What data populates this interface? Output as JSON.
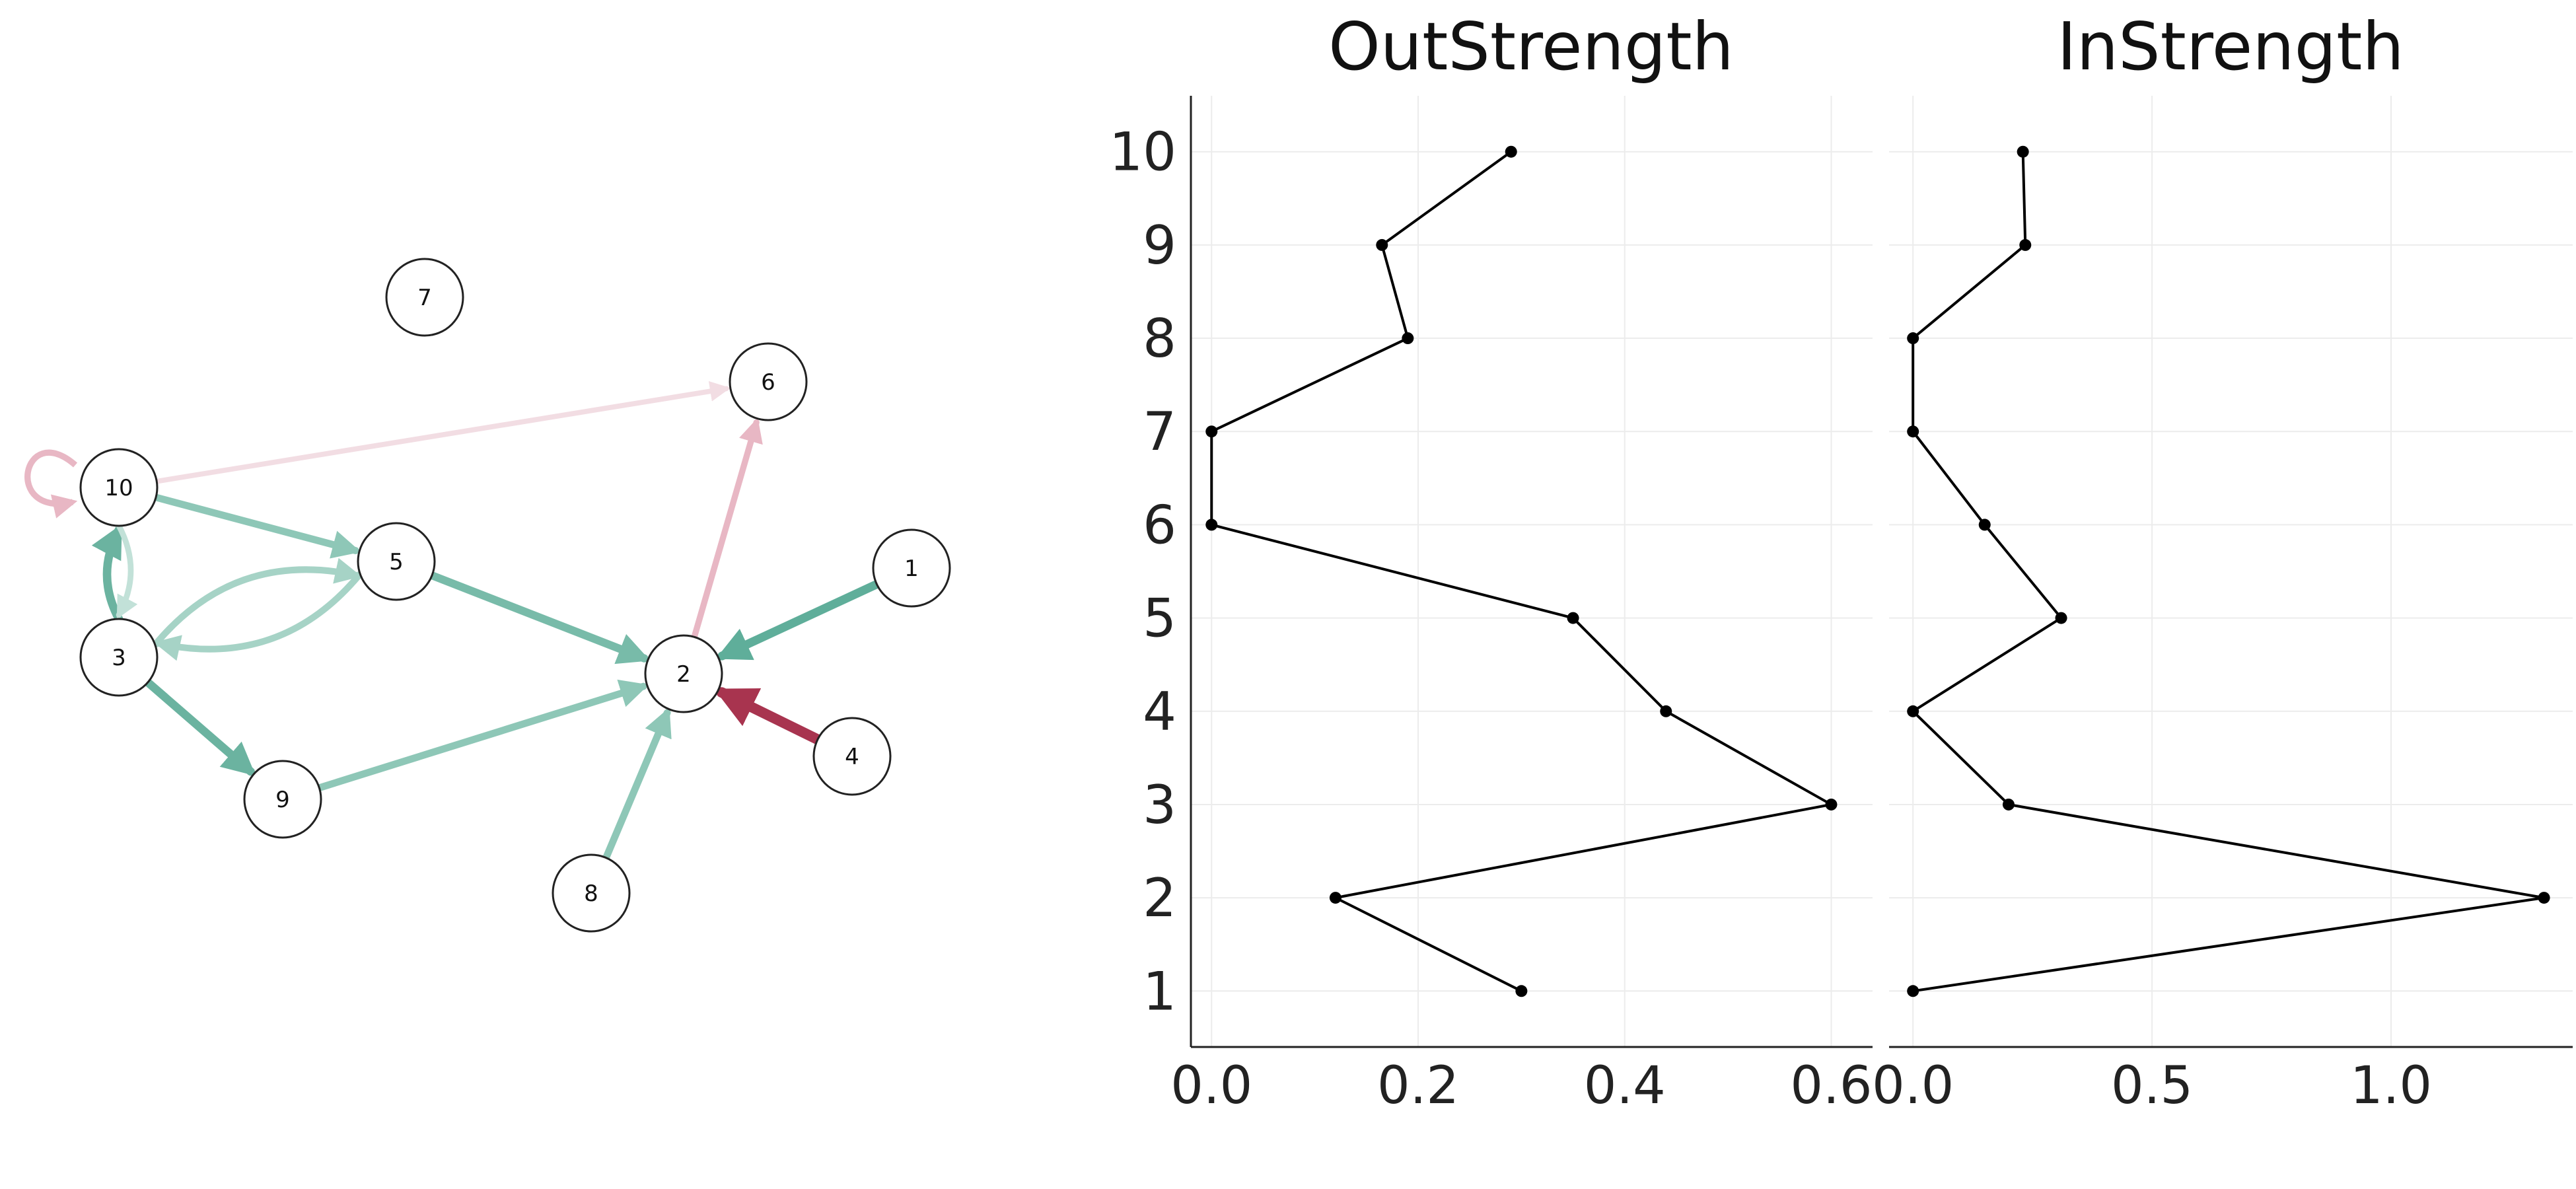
{
  "graph": {
    "node_labels": [
      "1",
      "2",
      "3",
      "4",
      "5",
      "6",
      "7",
      "8",
      "9",
      "10"
    ],
    "edges": [
      {
        "from": "1",
        "to": "2",
        "color": "#5fae9a",
        "weight": 0.32
      },
      {
        "from": "4",
        "to": "2",
        "color": "#a8344f",
        "weight": 0.45
      },
      {
        "from": "5",
        "to": "2",
        "color": "#78bba9",
        "weight": 0.28
      },
      {
        "from": "9",
        "to": "2",
        "color": "#8ec7b7",
        "weight": 0.22
      },
      {
        "from": "8",
        "to": "2",
        "color": "#8ec7b7",
        "weight": 0.22
      },
      {
        "from": "2",
        "to": "6",
        "color": "#e8b7c4",
        "weight": 0.15
      },
      {
        "from": "10",
        "to": "5",
        "color": "#8ec7b7",
        "weight": 0.22
      },
      {
        "from": "3",
        "to": "5",
        "color": "#a6d3c6",
        "weight": 0.18
      },
      {
        "from": "5",
        "to": "3",
        "color": "#a6d3c6",
        "weight": 0.18
      },
      {
        "from": "3",
        "to": "10",
        "color": "#6bb3a0",
        "weight": 0.3
      },
      {
        "from": "10",
        "to": "3",
        "color": "#c2e1d8",
        "weight": 0.12
      },
      {
        "from": "3",
        "to": "9",
        "color": "#6bb3a0",
        "weight": 0.3
      },
      {
        "from": "10",
        "to": "6",
        "color": "#f2dde3",
        "weight": 0.08
      },
      {
        "from": "10",
        "to": "10",
        "color": "#e8b7c4",
        "weight": 0.15
      }
    ]
  },
  "chart_data": [
    {
      "type": "line",
      "title": "OutStrength",
      "y": [
        1,
        2,
        3,
        4,
        5,
        6,
        7,
        8,
        9,
        10
      ],
      "x": [
        0.3,
        0.12,
        0.6,
        0.44,
        0.35,
        0.0,
        0.0,
        0.19,
        0.165,
        0.29
      ],
      "xlim": [
        -0.02,
        0.64
      ],
      "ylim": [
        0.4,
        10.6
      ],
      "xticks": [
        "0.0",
        "0.2",
        "0.4",
        "0.6"
      ],
      "yticks": [
        "1",
        "2",
        "3",
        "4",
        "5",
        "6",
        "7",
        "8",
        "9",
        "10"
      ],
      "grid": true
    },
    {
      "type": "line",
      "title": "InStrength",
      "y": [
        1,
        2,
        3,
        4,
        5,
        6,
        7,
        8,
        9,
        10
      ],
      "x": [
        0.0,
        1.32,
        0.2,
        0.0,
        0.31,
        0.15,
        0.0,
        0.0,
        0.235,
        0.23
      ],
      "xlim": [
        -0.05,
        1.38
      ],
      "ylim": [
        0.4,
        10.6
      ],
      "xticks": [
        "0.0",
        "0.5",
        "1.0"
      ],
      "yticks": [
        "1",
        "2",
        "3",
        "4",
        "5",
        "6",
        "7",
        "8",
        "9",
        "10"
      ],
      "grid": true
    }
  ]
}
